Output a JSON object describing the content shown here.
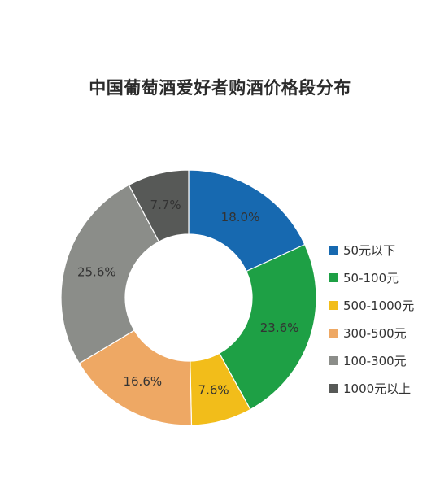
{
  "chart_data": {
    "type": "pie",
    "title": "中国葡萄酒爱好者购酒价格段分布",
    "slices": [
      {
        "label": "50元以下",
        "value": 18.0,
        "display": "18.0%",
        "color": "#1769b0"
      },
      {
        "label": "50-100元",
        "value": 23.6,
        "display": "23.6%",
        "color": "#1ea045"
      },
      {
        "label": "500-1000元",
        "value": 7.6,
        "display": "7.6%",
        "color": "#f2bd1a"
      },
      {
        "label": "300-500元",
        "value": 16.6,
        "display": "16.6%",
        "color": "#eea864"
      },
      {
        "label": "100-300元",
        "value": 25.6,
        "display": "25.6%",
        "color": "#8b8d89"
      },
      {
        "label": "1000元以上",
        "value": 7.7,
        "display": "7.7%",
        "color": "#575957"
      }
    ],
    "style": "donut",
    "start_position": "top, clockwise",
    "legend_position": "right"
  }
}
